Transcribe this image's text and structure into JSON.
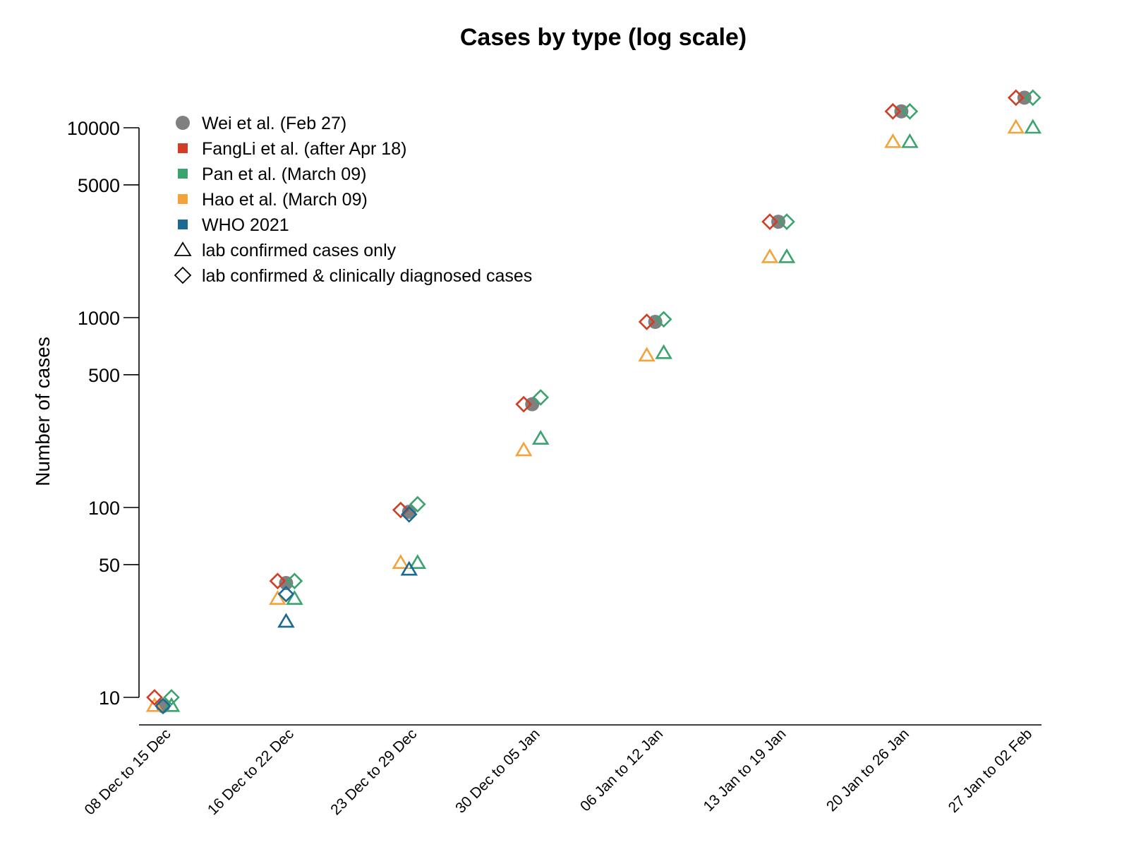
{
  "chart_data": {
    "type": "scatter",
    "title": "Cases by type (log scale)",
    "xlabel": "",
    "ylabel": "Number of cases",
    "y_scale": "log",
    "ylim": [
      8.5,
      17000
    ],
    "yticks": [
      10,
      50,
      100,
      500,
      1000,
      5000,
      10000
    ],
    "ytick_labels": [
      "10",
      "50",
      "100",
      "500",
      "1000",
      "5000",
      "10000"
    ],
    "grid": false,
    "legend_position": "top-left",
    "categories": [
      "08 Dec to 15 Dec",
      "16 Dec to 22 Dec",
      "23 Dec to 29 Dec",
      "30 Dec to 05 Jan",
      "06 Jan to 12 Jan",
      "13 Jan to 19 Jan",
      "20 Jan to 26 Jan",
      "27 Jan to 02 Feb"
    ],
    "colors": {
      "wei": "#808080",
      "fangli": "#d13d27",
      "pan": "#3aa36e",
      "hao": "#f2a33a",
      "who": "#1a6a94",
      "legend_shape": "#000000"
    },
    "series": [
      {
        "name": "Wei et al. (Feb 27)",
        "color_key": "wei",
        "marker": "circle",
        "values": [
          9,
          40,
          95,
          350,
          950,
          3200,
          12200,
          14400
        ]
      },
      {
        "name": "FangLi et al. (after Apr 18)",
        "color_key": "fangli",
        "marker": "diamond",
        "values": [
          10,
          41,
          97,
          350,
          950,
          3200,
          12200,
          14400
        ]
      },
      {
        "name": "Pan et al. (March 09)",
        "color_key": "pan",
        "marker": "diamond",
        "values": [
          10,
          41,
          104,
          380,
          980,
          3200,
          12200,
          14400
        ]
      },
      {
        "name": "Pan et al. (March 09)",
        "color_key": "pan",
        "marker": "triangle",
        "values": [
          9,
          33,
          51,
          230,
          650,
          2080,
          8400,
          10000
        ]
      },
      {
        "name": "Hao et al. (March 09)",
        "color_key": "hao",
        "marker": "triangle",
        "values": [
          9,
          33,
          51,
          200,
          630,
          2080,
          8400,
          10000
        ]
      },
      {
        "name": "WHO 2021",
        "color_key": "who",
        "marker": "diamond",
        "values": [
          9,
          35,
          92,
          null,
          null,
          null,
          null,
          null
        ]
      },
      {
        "name": "WHO 2021",
        "color_key": "who",
        "marker": "triangle",
        "values": [
          null,
          25,
          47,
          null,
          null,
          null,
          null,
          null
        ]
      }
    ],
    "legend": [
      {
        "label": "Wei et al. (Feb 27)",
        "symbol": "circle",
        "color_key": "wei"
      },
      {
        "label": "FangLi et al. (after Apr 18)",
        "symbol": "square",
        "color_key": "fangli"
      },
      {
        "label": "Pan et al. (March 09)",
        "symbol": "square",
        "color_key": "pan"
      },
      {
        "label": "Hao et al. (March 09)",
        "symbol": "square",
        "color_key": "hao"
      },
      {
        "label": "WHO 2021",
        "symbol": "square",
        "color_key": "who"
      },
      {
        "label": "lab confirmed cases only",
        "symbol": "triangle-open",
        "color_key": "legend_shape"
      },
      {
        "label": "lab confirmed & clinically diagnosed cases",
        "symbol": "diamond-open",
        "color_key": "legend_shape"
      }
    ]
  }
}
